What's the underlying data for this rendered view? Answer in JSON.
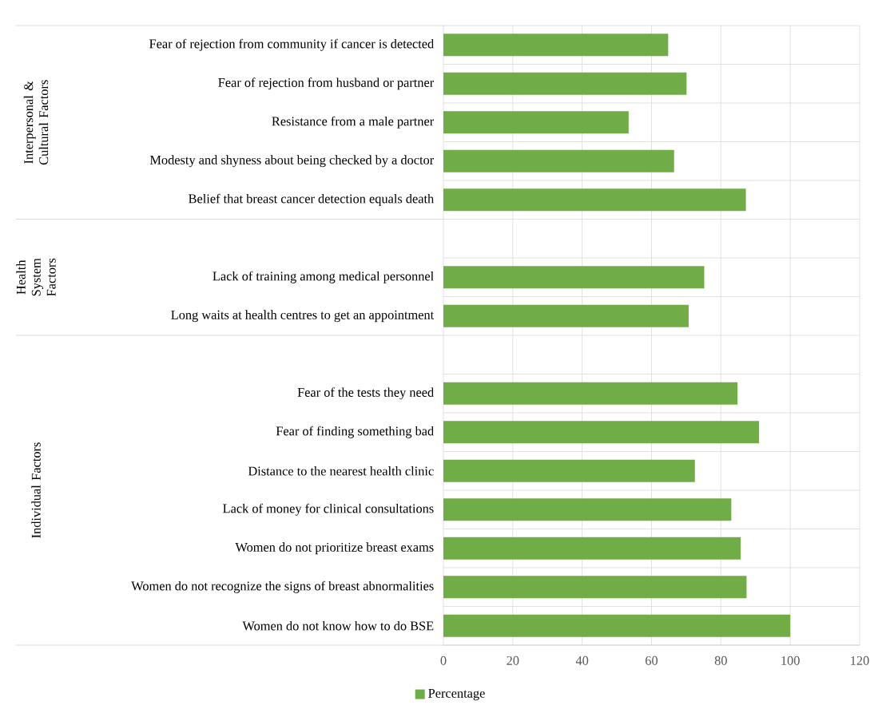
{
  "chart_data": {
    "type": "bar",
    "orientation": "horizontal",
    "categories": [
      "Fear of rejection from community if cancer is detected",
      "Fear of rejection from husband or partner",
      "Resistance from a male partner",
      "Modesty and shyness about being checked by a doctor",
      "Belief that breast cancer detection equals death",
      null,
      "Lack of training among medical personnel",
      "Long waits at health centres to get an appointment",
      null,
      "Fear of the tests they need",
      "Fear of finding something bad",
      "Distance to the nearest health clinic",
      "Lack of money for clinical consultations",
      "Women do not prioritize breast exams",
      "Women do not recognize the signs of breast abnormalities",
      "Women do not know how to do BSE"
    ],
    "series": [
      {
        "name": "Percentage",
        "color": "#70ad47",
        "values": [
          64.8,
          70.1,
          53.4,
          66.5,
          87.2,
          null,
          75.2,
          70.7,
          null,
          84.8,
          91.0,
          72.5,
          83.0,
          85.7,
          87.4,
          100
        ]
      }
    ],
    "xlim": [
      0,
      120
    ],
    "xticks": [
      0,
      20,
      40,
      60,
      80,
      100,
      120
    ],
    "grid": true,
    "legend": "bottom",
    "annotations": [
      "Interpersonal & Cultural Factors",
      "Health System Factors",
      "Individual Factors"
    ]
  }
}
